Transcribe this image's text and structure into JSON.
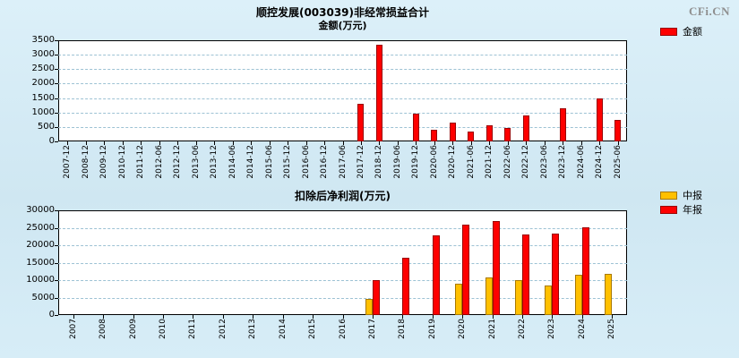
{
  "logo": "CFi.CN",
  "chart_data": [
    {
      "type": "bar",
      "title": "顺控发展(003039)非经常损益合计",
      "subtitle": "金额(万元)",
      "categories": [
        "2007-12",
        "2008-12",
        "2009-12",
        "2010-12",
        "2011-12",
        "2012-06",
        "2012-12",
        "2013-06",
        "2013-12",
        "2014-06",
        "2014-12",
        "2015-06",
        "2015-12",
        "2016-06",
        "2016-12",
        "2017-06",
        "2017-12",
        "2018-12",
        "2019-06",
        "2019-12",
        "2020-06",
        "2020-12",
        "2021-06",
        "2021-12",
        "2022-06",
        "2022-12",
        "2023-06",
        "2023-12",
        "2024-06",
        "2024-12",
        "2025-06"
      ],
      "series": [
        {
          "name": "金额",
          "color": "#fe0000",
          "border": "#990000",
          "values": [
            null,
            null,
            null,
            null,
            null,
            null,
            null,
            null,
            null,
            null,
            null,
            null,
            null,
            null,
            null,
            null,
            1300,
            3350,
            null,
            950,
            400,
            650,
            350,
            550,
            450,
            900,
            null,
            1150,
            null,
            1500,
            750
          ]
        }
      ],
      "ylim": [
        0,
        3500
      ],
      "yticks": [
        0,
        500,
        1000,
        1500,
        2000,
        2500,
        3000,
        3500
      ],
      "grid": true,
      "legend_position": "right-top"
    },
    {
      "type": "bar",
      "title": "扣除后净利润(万元)",
      "subtitle": "",
      "categories": [
        "2007",
        "2008",
        "2009",
        "2010",
        "2011",
        "2012",
        "2013",
        "2014",
        "2015",
        "2016",
        "2017",
        "2018",
        "2019",
        "2020",
        "2021",
        "2022",
        "2023",
        "2024",
        "2025"
      ],
      "series": [
        {
          "name": "中报",
          "color": "#ffc000",
          "border": "#a87800",
          "values": [
            null,
            null,
            null,
            null,
            null,
            null,
            null,
            null,
            null,
            null,
            4500,
            null,
            null,
            9000,
            10800,
            10000,
            8500,
            11500,
            11800
          ]
        },
        {
          "name": "年报",
          "color": "#fe0000",
          "border": "#990000",
          "values": [
            null,
            null,
            null,
            null,
            null,
            null,
            null,
            null,
            null,
            null,
            10000,
            16300,
            22800,
            26000,
            26800,
            23000,
            23300,
            25200,
            null
          ]
        }
      ],
      "ylim": [
        0,
        30000
      ],
      "yticks": [
        0,
        5000,
        10000,
        15000,
        20000,
        25000,
        30000
      ],
      "grid": true,
      "legend_position": "right-top"
    }
  ]
}
